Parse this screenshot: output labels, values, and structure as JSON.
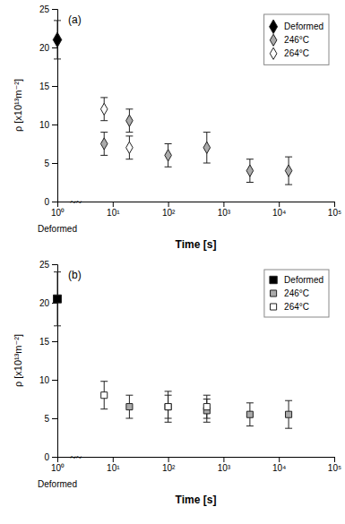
{
  "chart_data": [
    {
      "type": "scatter",
      "xlabel": "Time [s]",
      "ylabel": "ρ [x10¹³m⁻²]",
      "annotations": [
        "(a)",
        "Deformed",
        "~~"
      ],
      "log": "x",
      "grid": false,
      "legend": "upper right",
      "marker": "diamond",
      "xlim": [
        1,
        100000
      ],
      "xticks": [
        {
          "value": 1,
          "label": "10⁰"
        },
        {
          "value": 10,
          "label": "10¹"
        },
        {
          "value": 100,
          "label": "10²"
        },
        {
          "value": 1000,
          "label": "10³"
        },
        {
          "value": 10000,
          "label": "10⁴"
        },
        {
          "value": 100000,
          "label": "10⁵"
        }
      ],
      "ylim": [
        0,
        25
      ],
      "yticks": [
        0,
        5,
        10,
        15,
        20,
        25
      ],
      "series": [
        {
          "name": "Deformed",
          "color": "black",
          "values": [
            21.0
          ],
          "yerr": [
            2.5
          ]
        },
        {
          "name": "246°C",
          "color": "#aaaaaa",
          "x": [
            7,
            20,
            100,
            500,
            3000,
            15000
          ],
          "values": [
            7.5,
            10.5,
            6.0,
            7.0,
            4.0,
            4.0
          ],
          "yerr": [
            1.5,
            1.5,
            1.5,
            2.0,
            1.5,
            1.8
          ]
        },
        {
          "name": "264°C",
          "color": "white",
          "x": [
            7,
            20
          ],
          "values": [
            12.0,
            7.0
          ],
          "yerr": [
            1.5,
            1.5
          ]
        }
      ]
    },
    {
      "type": "scatter",
      "xlabel": "Time [s]",
      "ylabel": "ρ [x10¹³m⁻²]",
      "annotations": [
        "(b)",
        "Deformed",
        "~~"
      ],
      "log": "x",
      "grid": false,
      "legend": "upper right",
      "marker": "square",
      "xlim": [
        1,
        100000
      ],
      "xticks": [
        {
          "value": 1,
          "label": "10⁰"
        },
        {
          "value": 10,
          "label": "10¹"
        },
        {
          "value": 100,
          "label": "10²"
        },
        {
          "value": 1000,
          "label": "10³"
        },
        {
          "value": 10000,
          "label": "10⁴"
        },
        {
          "value": 100000,
          "label": "10⁵"
        }
      ],
      "ylim": [
        0,
        25
      ],
      "yticks": [
        0,
        5,
        10,
        15,
        20,
        25
      ],
      "series": [
        {
          "name": "Deformed",
          "color": "black",
          "values": [
            20.5
          ],
          "yerr": [
            3.5
          ]
        },
        {
          "name": "246°C",
          "color": "#aaaaaa",
          "x": [
            20,
            100,
            500,
            3000,
            15000
          ],
          "values": [
            6.5,
            6.5,
            6.0,
            5.5,
            5.5
          ],
          "yerr": [
            1.5,
            1.5,
            1.5,
            1.5,
            1.8
          ]
        },
        {
          "name": "264°C",
          "color": "white",
          "x": [
            7,
            100,
            500
          ],
          "values": [
            8.0,
            6.5,
            6.5
          ],
          "yerr": [
            1.8,
            2.0,
            1.5
          ]
        }
      ]
    }
  ]
}
